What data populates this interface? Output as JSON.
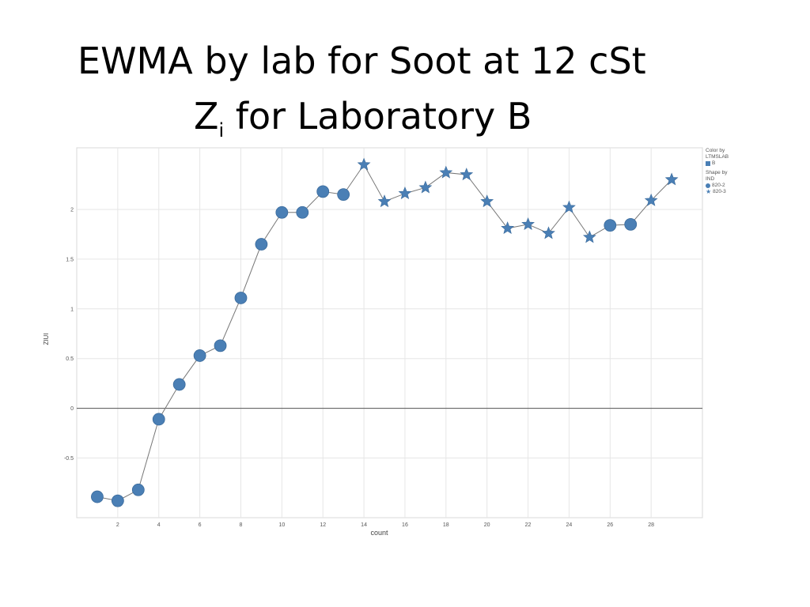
{
  "title": {
    "line1": "EWMA by lab for Soot at 12 cSt",
    "line2_main": "Z",
    "line2_sub": "i",
    "line2_rest": " for Laboratory B"
  },
  "legend": {
    "color_heading_1": "Color by",
    "color_heading_2": "LTMSLAB",
    "color_item": "B",
    "shape_heading_1": "Shape by",
    "shape_heading_2": "IND",
    "shape_items": [
      "820-2",
      "820-3"
    ]
  },
  "colors": {
    "marker": "#4a7fb5",
    "line": "#777777",
    "zero_line": "#555555",
    "grid": "#e6e6e6"
  },
  "chart_data": {
    "type": "scatter",
    "xlabel": "count",
    "ylabel": "ZIUI",
    "xlim": [
      0,
      30.5
    ],
    "ylim": [
      -1.1,
      2.62
    ],
    "x_ticks": [
      2,
      4,
      6,
      8,
      10,
      12,
      14,
      16,
      18,
      20,
      22,
      24,
      26,
      28
    ],
    "y_ticks": [
      -0.5,
      0,
      0.5,
      1,
      1.5,
      2
    ],
    "y_tick_labels": [
      "-0.5",
      "0",
      "0.5",
      "1",
      "1.5",
      "2"
    ],
    "grid": true,
    "connected_line": true,
    "legend_position": "right",
    "series": [
      {
        "name": "820-2",
        "marker": "circle",
        "x": [
          1,
          2,
          3,
          4,
          5,
          6,
          7,
          8,
          9,
          10,
          11,
          12,
          13,
          26,
          27
        ],
        "y": [
          -0.89,
          -0.93,
          -0.82,
          -0.11,
          0.24,
          0.53,
          0.63,
          1.11,
          1.65,
          1.97,
          1.97,
          2.18,
          2.15,
          1.84,
          1.85
        ]
      },
      {
        "name": "820-3",
        "marker": "star",
        "x": [
          14,
          15,
          16,
          17,
          18,
          19,
          20,
          21,
          22,
          23,
          24,
          25,
          28,
          29
        ],
        "y": [
          2.45,
          2.08,
          2.16,
          2.22,
          2.37,
          2.35,
          2.08,
          1.81,
          1.85,
          1.76,
          2.02,
          1.72,
          2.09,
          2.3
        ]
      }
    ]
  }
}
